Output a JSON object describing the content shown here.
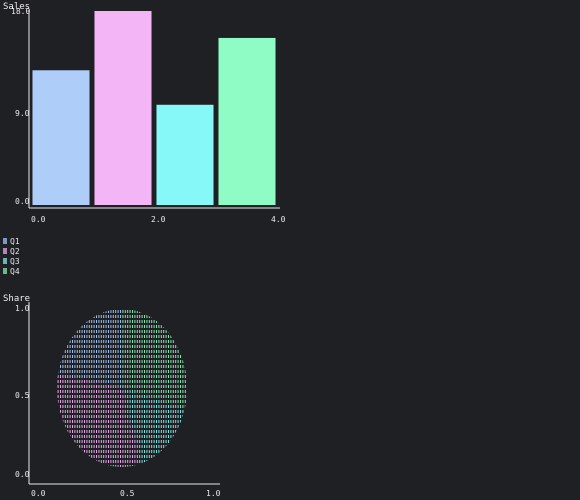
{
  "bar_chart": {
    "title": "Sales",
    "y_ticks": [
      "18.0",
      "9.0",
      "0.0"
    ],
    "x_ticks": [
      "0.0",
      "2.0",
      "4.0"
    ]
  },
  "legend": {
    "items": [
      {
        "label": "Q1",
        "color": "#9fc0f0"
      },
      {
        "label": "Q2",
        "color": "#e6a8e8"
      },
      {
        "label": "Q3",
        "color": "#7fe6e3"
      },
      {
        "label": "Q4",
        "color": "#89e6b0"
      }
    ]
  },
  "pie_chart": {
    "title": "Share",
    "y_ticks": [
      "1.0",
      "0.5",
      "0.0"
    ],
    "x_ticks": [
      "0.0",
      "0.5",
      "1.0"
    ]
  },
  "chart_data": [
    {
      "type": "bar",
      "title": "Sales",
      "categories": [
        "Q1",
        "Q2",
        "Q3",
        "Q4"
      ],
      "x": [
        0.5,
        1.5,
        2.5,
        3.5
      ],
      "values": [
        12.5,
        18,
        9.3,
        15.5
      ],
      "colors": [
        "#aecdf8",
        "#f4b5f6",
        "#86f8f8",
        "#8efcc4"
      ],
      "xlim": [
        0,
        4
      ],
      "ylim": [
        0,
        18
      ]
    },
    {
      "type": "pie",
      "title": "Share",
      "categories": [
        "Q1",
        "Q2",
        "Q3",
        "Q4"
      ],
      "values": [
        22,
        33,
        16,
        29
      ],
      "colors": [
        "#9fc0f0",
        "#e6a8e8",
        "#7fe6e3",
        "#89e6b0"
      ],
      "xlim": [
        0,
        1
      ],
      "ylim": [
        0,
        1
      ]
    }
  ]
}
